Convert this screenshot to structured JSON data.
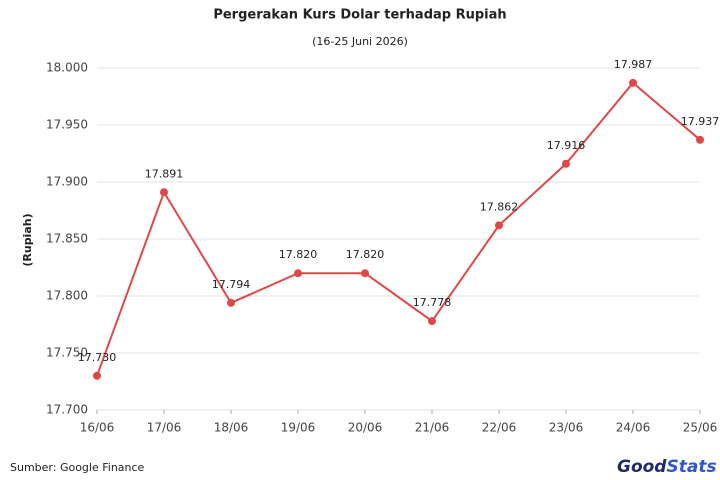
{
  "chart_data": {
    "type": "line",
    "title": "Pergerakan Kurs Dolar terhadap Rupiah",
    "subtitle": "(16-25 Juni 2026)",
    "y_label": "(Rupiah)",
    "source": "Sumber: Google Finance",
    "logo": [
      "Good",
      "Stats"
    ],
    "categories": [
      "16/06",
      "17/06",
      "18/06",
      "19/06",
      "20/06",
      "21/06",
      "22/06",
      "23/06",
      "24/06",
      "25/06"
    ],
    "values": [
      17730,
      17891,
      17794,
      17820,
      17820,
      17778,
      17862,
      17916,
      17987,
      17937
    ],
    "value_labels": [
      "17.730",
      "17.891",
      "17.794",
      "17.820",
      "17.820",
      "17.778",
      "17.862",
      "17.916",
      "17.987",
      "17.937"
    ],
    "color": "#e04848",
    "ylim": [
      17700,
      18000
    ],
    "yticks": [
      {
        "value": 17700,
        "label": "17.700"
      },
      {
        "value": 17750,
        "label": "17.750"
      },
      {
        "value": 17800,
        "label": "17.800"
      },
      {
        "value": 17850,
        "label": "17.850"
      },
      {
        "value": 17900,
        "label": "17.900"
      },
      {
        "value": 17950,
        "label": "17.950"
      },
      {
        "value": 18000,
        "label": "18.000"
      }
    ],
    "grid": true
  }
}
